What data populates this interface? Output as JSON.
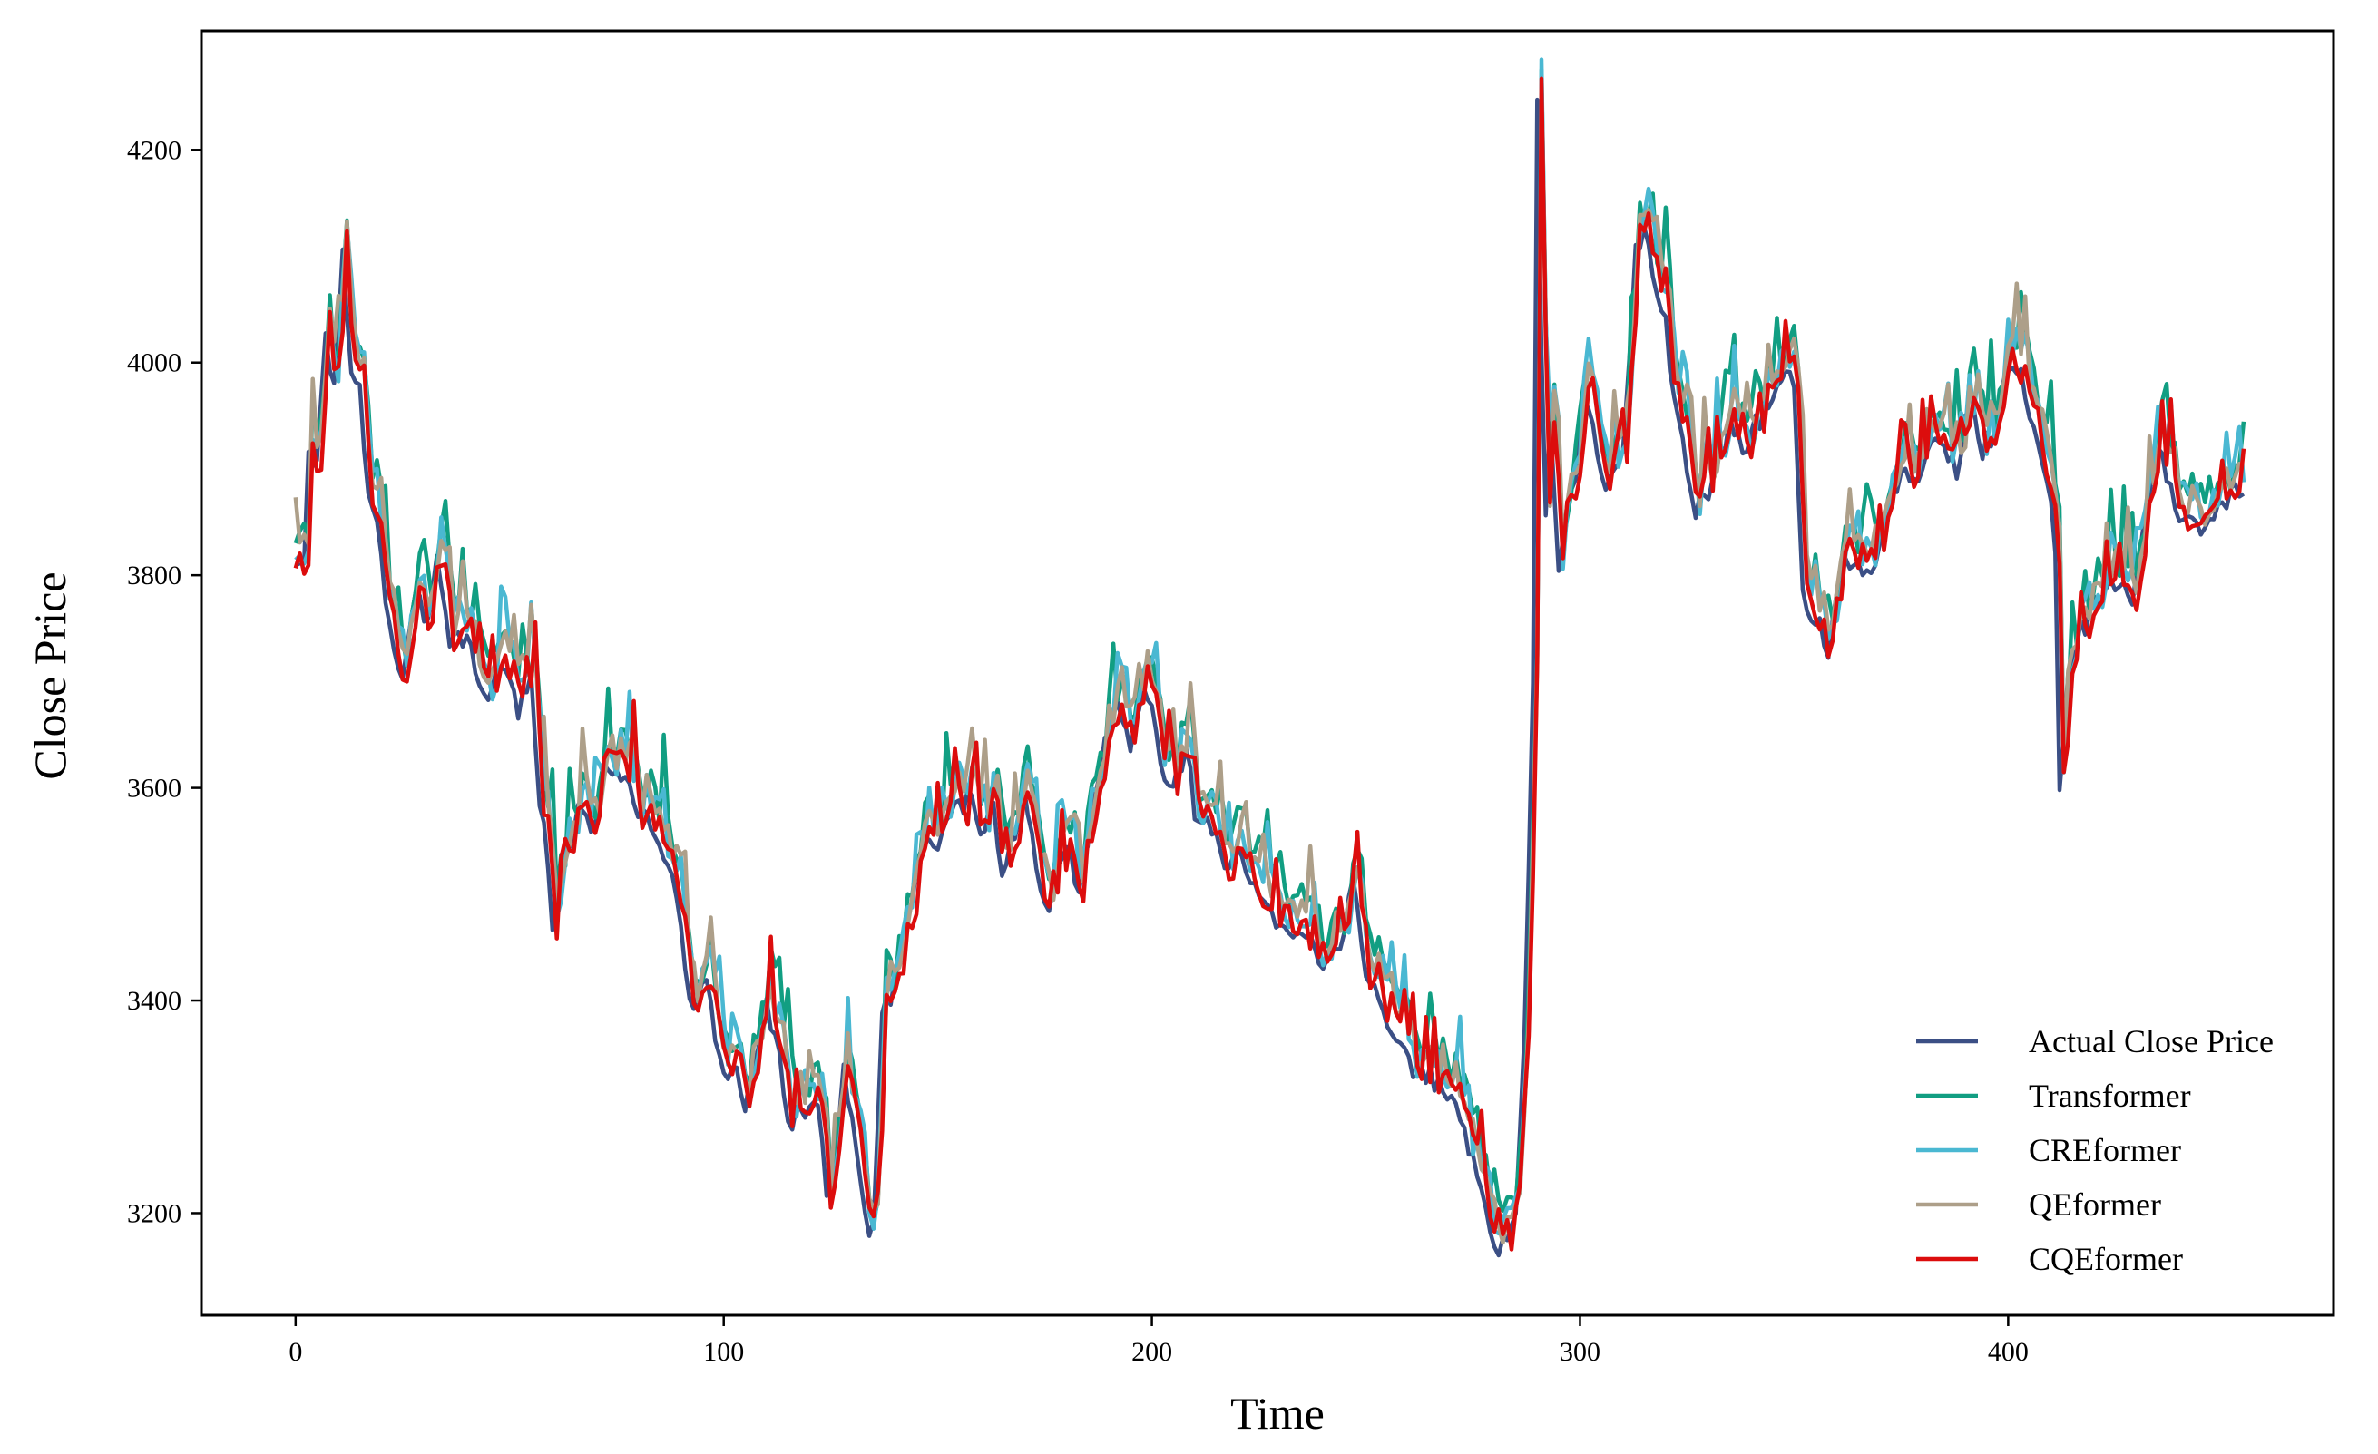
{
  "colors": {
    "actual": "#3b4f85",
    "transformer": "#119e82",
    "creformer": "#4ab8d2",
    "qeformer": "#ad9f89",
    "cqeformer": "#dc0d0d"
  },
  "chart_data": {
    "type": "line",
    "title": "",
    "xlabel": "Time",
    "ylabel": "Close Price",
    "xlim": [
      -22,
      476
    ],
    "ylim": [
      3104,
      4312
    ],
    "xticks": [
      0,
      100,
      200,
      300,
      400
    ],
    "yticks": [
      3200,
      3400,
      3600,
      3800,
      4000,
      4200
    ],
    "grid": false,
    "legend_position": "lower-right",
    "legend": [
      "Actual Close Price",
      "Transformer",
      "CREformer",
      "QEformer",
      "CQEformer"
    ],
    "x_range": [
      0,
      455
    ],
    "actual_keypoints": [
      [
        0,
        3815
      ],
      [
        2,
        3805
      ],
      [
        3,
        3910
      ],
      [
        5,
        3900
      ],
      [
        7,
        4030
      ],
      [
        9,
        3975
      ],
      [
        11,
        4100
      ],
      [
        13,
        3985
      ],
      [
        15,
        3970
      ],
      [
        17,
        3880
      ],
      [
        19,
        3855
      ],
      [
        21,
        3780
      ],
      [
        23,
        3730
      ],
      [
        25,
        3700
      ],
      [
        28,
        3775
      ],
      [
        31,
        3760
      ],
      [
        33,
        3825
      ],
      [
        36,
        3740
      ],
      [
        40,
        3745
      ],
      [
        44,
        3680
      ],
      [
        48,
        3720
      ],
      [
        52,
        3675
      ],
      [
        55,
        3700
      ],
      [
        57,
        3590
      ],
      [
        59,
        3525
      ],
      [
        60,
        3475
      ],
      [
        63,
        3525
      ],
      [
        66,
        3585
      ],
      [
        70,
        3560
      ],
      [
        72,
        3625
      ],
      [
        76,
        3610
      ],
      [
        80,
        3580
      ],
      [
        84,
        3560
      ],
      [
        87,
        3520
      ],
      [
        90,
        3480
      ],
      [
        92,
        3400
      ],
      [
        96,
        3410
      ],
      [
        100,
        3330
      ],
      [
        103,
        3330
      ],
      [
        105,
        3300
      ],
      [
        108,
        3350
      ],
      [
        110,
        3400
      ],
      [
        113,
        3350
      ],
      [
        115,
        3280
      ],
      [
        118,
        3300
      ],
      [
        122,
        3300
      ],
      [
        124,
        3220
      ],
      [
        126,
        3250
      ],
      [
        128,
        3350
      ],
      [
        130,
        3280
      ],
      [
        133,
        3190
      ],
      [
        135,
        3185
      ],
      [
        137,
        3380
      ],
      [
        140,
        3420
      ],
      [
        143,
        3480
      ],
      [
        147,
        3560
      ],
      [
        150,
        3540
      ],
      [
        153,
        3580
      ],
      [
        156,
        3580
      ],
      [
        158,
        3600
      ],
      [
        160,
        3560
      ],
      [
        163,
        3580
      ],
      [
        165,
        3510
      ],
      [
        168,
        3560
      ],
      [
        170,
        3600
      ],
      [
        173,
        3520
      ],
      [
        176,
        3480
      ],
      [
        178,
        3520
      ],
      [
        181,
        3540
      ],
      [
        183,
        3500
      ],
      [
        186,
        3570
      ],
      [
        189,
        3640
      ],
      [
        192,
        3680
      ],
      [
        195,
        3640
      ],
      [
        198,
        3690
      ],
      [
        200,
        3680
      ],
      [
        202,
        3620
      ],
      [
        205,
        3600
      ],
      [
        208,
        3640
      ],
      [
        210,
        3580
      ],
      [
        214,
        3560
      ],
      [
        218,
        3520
      ],
      [
        220,
        3540
      ],
      [
        225,
        3500
      ],
      [
        229,
        3470
      ],
      [
        233,
        3455
      ],
      [
        237,
        3470
      ],
      [
        240,
        3430
      ],
      [
        242,
        3460
      ],
      [
        244,
        3450
      ],
      [
        247,
        3520
      ],
      [
        250,
        3430
      ],
      [
        252,
        3410
      ],
      [
        255,
        3370
      ],
      [
        258,
        3350
      ],
      [
        260,
        3340
      ],
      [
        264,
        3330
      ],
      [
        268,
        3320
      ],
      [
        271,
        3300
      ],
      [
        274,
        3260
      ],
      [
        277,
        3220
      ],
      [
        279,
        3190
      ],
      [
        281,
        3160
      ],
      [
        283,
        3180
      ],
      [
        285,
        3200
      ],
      [
        287,
        3360
      ],
      [
        289,
        3700
      ],
      [
        290,
        4255
      ],
      [
        291,
        4000
      ],
      [
        292,
        3850
      ],
      [
        293,
        3950
      ],
      [
        295,
        3800
      ],
      [
        297,
        3870
      ],
      [
        299,
        3900
      ],
      [
        301,
        3960
      ],
      [
        303,
        3940
      ],
      [
        306,
        3880
      ],
      [
        310,
        3920
      ],
      [
        313,
        4100
      ],
      [
        315,
        4130
      ],
      [
        317,
        4090
      ],
      [
        320,
        4040
      ],
      [
        322,
        3960
      ],
      [
        325,
        3900
      ],
      [
        327,
        3860
      ],
      [
        330,
        3880
      ],
      [
        332,
        3910
      ],
      [
        335,
        3940
      ],
      [
        338,
        3920
      ],
      [
        341,
        3940
      ],
      [
        344,
        3960
      ],
      [
        347,
        3990
      ],
      [
        350,
        3980
      ],
      [
        352,
        3780
      ],
      [
        355,
        3760
      ],
      [
        358,
        3730
      ],
      [
        361,
        3800
      ],
      [
        364,
        3820
      ],
      [
        367,
        3800
      ],
      [
        370,
        3820
      ],
      [
        373,
        3880
      ],
      [
        376,
        3900
      ],
      [
        379,
        3880
      ],
      [
        382,
        3930
      ],
      [
        385,
        3920
      ],
      [
        388,
        3900
      ],
      [
        391,
        3960
      ],
      [
        394,
        3920
      ],
      [
        397,
        3930
      ],
      [
        400,
        4000
      ],
      [
        403,
        3990
      ],
      [
        405,
        3950
      ],
      [
        407,
        3930
      ],
      [
        409,
        3900
      ],
      [
        411,
        3820
      ],
      [
        412,
        3590
      ],
      [
        414,
        3700
      ],
      [
        416,
        3740
      ],
      [
        420,
        3770
      ],
      [
        423,
        3790
      ],
      [
        426,
        3790
      ],
      [
        429,
        3770
      ],
      [
        432,
        3860
      ],
      [
        435,
        3920
      ],
      [
        438,
        3880
      ],
      [
        441,
        3850
      ],
      [
        444,
        3840
      ],
      [
        447,
        3860
      ],
      [
        450,
        3870
      ],
      [
        453,
        3880
      ],
      [
        455,
        3870
      ]
    ],
    "series": [
      {
        "name": "Actual Close Price",
        "noise_seed": 11,
        "offset": 0,
        "noise": 10,
        "lag": 0,
        "smooth": 0
      },
      {
        "name": "Transformer",
        "noise_seed": 23,
        "offset": 30,
        "noise": 18,
        "lag": 1,
        "smooth": 0
      },
      {
        "name": "CREformer",
        "noise_seed": 37,
        "offset": 18,
        "noise": 20,
        "lag": 1,
        "smooth": 0
      },
      {
        "name": "QEformer",
        "noise_seed": 51,
        "offset": 20,
        "noise": 14,
        "lag": 1,
        "smooth": 0
      },
      {
        "name": "CQEformer",
        "noise_seed": 67,
        "offset": 5,
        "noise": 16,
        "lag": 1,
        "smooth": 0
      }
    ]
  }
}
